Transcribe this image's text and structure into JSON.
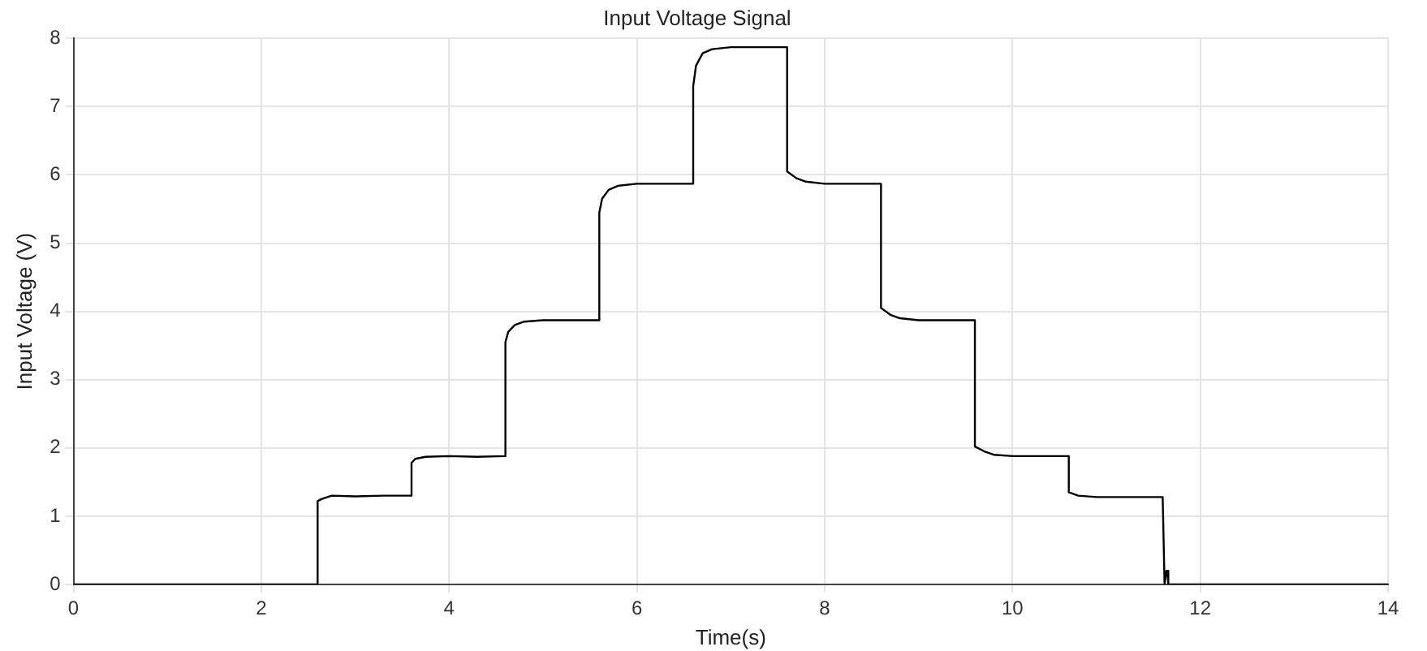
{
  "chart_data": {
    "type": "line",
    "title": "Input Voltage Signal",
    "xlabel": "Time(s)",
    "ylabel": "Input Voltage (V)",
    "x": [
      0,
      2.6,
      2.6,
      2.64,
      2.75,
      3.0,
      3.3,
      3.6,
      3.6,
      3.64,
      3.75,
      4.0,
      4.3,
      4.6,
      4.6,
      4.63,
      4.7,
      4.8,
      5.0,
      5.3,
      5.6,
      5.6,
      5.63,
      5.7,
      5.8,
      6.0,
      6.3,
      6.6,
      6.6,
      6.63,
      6.7,
      6.8,
      7.0,
      7.3,
      7.6,
      7.6,
      7.7,
      7.8,
      8.0,
      8.3,
      8.6,
      8.6,
      8.7,
      8.8,
      9.0,
      9.3,
      9.6,
      9.6,
      9.7,
      9.8,
      10.0,
      10.3,
      10.6,
      10.6,
      10.7,
      10.9,
      11.2,
      11.6,
      11.62,
      11.64,
      11.65,
      11.66,
      14
    ],
    "series": [
      {
        "color": "#000000",
        "values": [
          0,
          0,
          1.22,
          1.25,
          1.3,
          1.29,
          1.3,
          1.3,
          1.78,
          1.84,
          1.87,
          1.88,
          1.87,
          1.88,
          3.55,
          3.7,
          3.8,
          3.85,
          3.87,
          3.87,
          3.87,
          5.45,
          5.65,
          5.78,
          5.84,
          5.87,
          5.87,
          5.87,
          7.3,
          7.6,
          7.78,
          7.84,
          7.87,
          7.87,
          7.87,
          6.05,
          5.95,
          5.9,
          5.87,
          5.87,
          5.87,
          4.05,
          3.95,
          3.9,
          3.87,
          3.87,
          3.87,
          2.02,
          1.95,
          1.9,
          1.88,
          1.88,
          1.88,
          1.35,
          1.3,
          1.28,
          1.28,
          1.28,
          0,
          0.2,
          0.2,
          0,
          0
        ]
      }
    ],
    "xlim": [
      0,
      14
    ],
    "xticks": [
      0,
      2,
      4,
      6,
      8,
      10,
      12,
      14
    ],
    "ylim": [
      0,
      8
    ],
    "yticks": [
      0,
      1,
      2,
      3,
      4,
      5,
      6,
      7,
      8
    ],
    "grid": true,
    "legend": false,
    "marker": "none",
    "line_style": "solid"
  }
}
